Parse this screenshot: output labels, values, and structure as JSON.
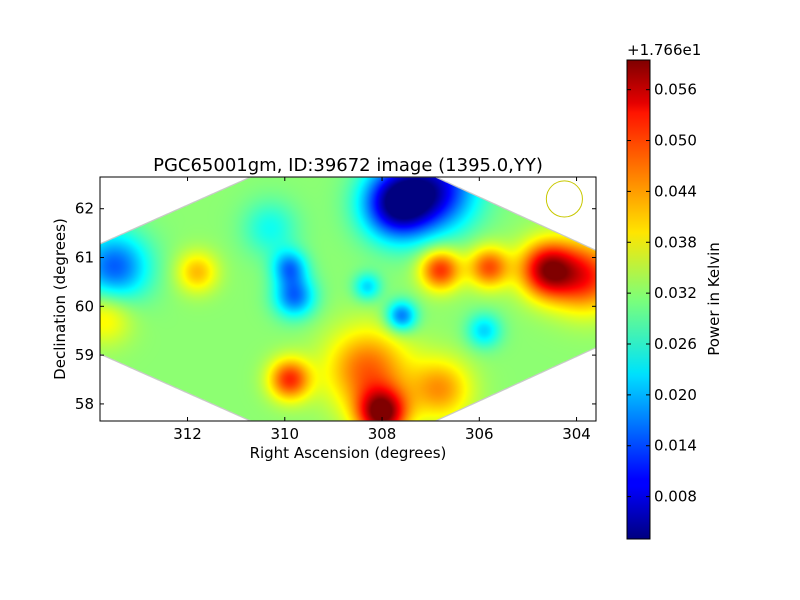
{
  "chart_data": {
    "type": "heatmap",
    "title": "PGC65001gm, ID:39672 image (1395.0,YY)",
    "xlabel": "Right Ascension (degrees)",
    "ylabel": "Declination (degrees)",
    "xlim": [
      313.8,
      303.6
    ],
    "ylim": [
      57.65,
      62.65
    ],
    "x_ticks": [
      312,
      310,
      308,
      306,
      304
    ],
    "y_ticks": [
      58,
      59,
      60,
      61,
      62
    ],
    "x_tick_labels": [
      "312",
      "310",
      "308",
      "306",
      "304"
    ],
    "y_tick_labels": [
      "58",
      "59",
      "60",
      "61",
      "62"
    ],
    "colorbar": {
      "label": "Power in Kelvin",
      "offset_label": "+1.766e1",
      "range": [
        0.003,
        0.0595
      ],
      "ticks": [
        0.008,
        0.014,
        0.02,
        0.026,
        0.032,
        0.038,
        0.044,
        0.05,
        0.056
      ],
      "tick_labels": [
        "0.008",
        "0.014",
        "0.020",
        "0.026",
        "0.032",
        "0.038",
        "0.044",
        "0.050",
        "0.056"
      ],
      "colormap": "jet"
    },
    "coverage_polygon": [
      [
        314.2,
        61.1
      ],
      [
        310.7,
        62.65
      ],
      [
        306.9,
        62.65
      ],
      [
        303.5,
        61.1
      ],
      [
        303.5,
        59.2
      ],
      [
        306.9,
        57.65
      ],
      [
        310.7,
        57.65
      ],
      [
        314.2,
        59.2
      ]
    ],
    "beam": {
      "ra": 304.25,
      "dec": 62.2,
      "radius_deg": 0.37,
      "color": "#c8c800"
    },
    "background_level": 0.032,
    "features": [
      {
        "ra": 307.7,
        "dec": 62.1,
        "value": 0.005,
        "sigma": 0.5
      },
      {
        "ra": 306.9,
        "dec": 62.4,
        "value": 0.01,
        "sigma": 0.6
      },
      {
        "ra": 313.5,
        "dec": 60.8,
        "value": 0.015,
        "sigma": 0.5
      },
      {
        "ra": 309.8,
        "dec": 60.2,
        "value": 0.016,
        "sigma": 0.3
      },
      {
        "ra": 309.9,
        "dec": 60.8,
        "value": 0.018,
        "sigma": 0.25
      },
      {
        "ra": 307.6,
        "dec": 59.8,
        "value": 0.016,
        "sigma": 0.22
      },
      {
        "ra": 308.3,
        "dec": 60.4,
        "value": 0.022,
        "sigma": 0.2
      },
      {
        "ra": 305.9,
        "dec": 59.5,
        "value": 0.022,
        "sigma": 0.25
      },
      {
        "ra": 310.3,
        "dec": 61.6,
        "value": 0.025,
        "sigma": 0.4
      },
      {
        "ra": 306.8,
        "dec": 60.75,
        "value": 0.05,
        "sigma": 0.3
      },
      {
        "ra": 305.8,
        "dec": 60.8,
        "value": 0.048,
        "sigma": 0.3
      },
      {
        "ra": 304.6,
        "dec": 60.75,
        "value": 0.056,
        "sigma": 0.4
      },
      {
        "ra": 303.8,
        "dec": 60.6,
        "value": 0.05,
        "sigma": 0.5
      },
      {
        "ra": 308.0,
        "dec": 57.8,
        "value": 0.059,
        "sigma": 0.35
      },
      {
        "ra": 308.3,
        "dec": 58.7,
        "value": 0.047,
        "sigma": 0.6
      },
      {
        "ra": 309.9,
        "dec": 58.5,
        "value": 0.05,
        "sigma": 0.3
      },
      {
        "ra": 306.8,
        "dec": 58.3,
        "value": 0.044,
        "sigma": 0.45
      },
      {
        "ra": 311.8,
        "dec": 60.7,
        "value": 0.042,
        "sigma": 0.3
      },
      {
        "ra": 313.7,
        "dec": 59.8,
        "value": 0.04,
        "sigma": 0.4
      }
    ]
  }
}
